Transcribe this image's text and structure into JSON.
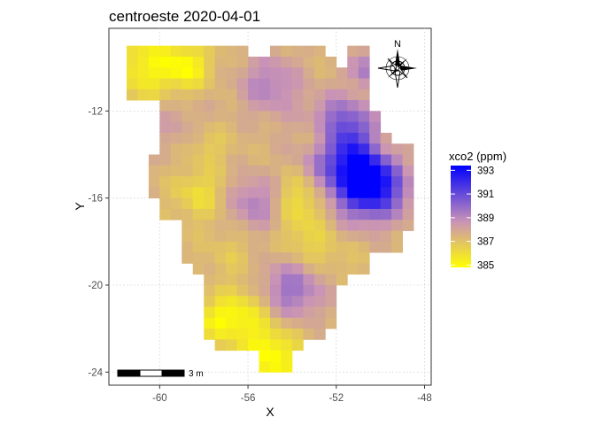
{
  "title": "centroeste 2020-04-01",
  "chart_data": {
    "type": "heatmap",
    "title": "centroeste 2020-04-01",
    "xlabel": "X",
    "ylabel": "Y",
    "x_ticks": [
      -60,
      -56,
      -52,
      -48
    ],
    "y_ticks": [
      -12,
      -16,
      -20,
      -24
    ],
    "x_tick_labels": [
      "-60",
      "-56",
      "-52",
      "-48"
    ],
    "y_tick_labels": [
      "-12",
      "-16",
      "-20",
      "-24"
    ],
    "xlim": [
      -62.3,
      -47.7
    ],
    "ylim": [
      -24.6,
      -8.2
    ],
    "grid": true,
    "grid_style": "dotted",
    "legend": {
      "title": "xco2 (ppm)",
      "placement": "right",
      "range": [
        384.8,
        393.4
      ],
      "breaks": [
        393,
        391,
        389,
        387,
        385
      ],
      "break_labels": [
        "393",
        "391",
        "389",
        "387",
        "385"
      ],
      "colors": [
        "#ffff00",
        "#c993b6",
        "#0000ff"
      ]
    },
    "cell_size_deg": 0.5,
    "region_rows": [
      {
        "y": -9.0,
        "x_ranges": [
          [
            -61.5,
            -56.0
          ],
          [
            -55.0,
            -52.5
          ],
          [
            -51.5,
            -50.5
          ]
        ]
      },
      {
        "y": -9.5,
        "x_ranges": [
          [
            -61.5,
            -52.0
          ],
          [
            -51.5,
            -50.5
          ]
        ]
      },
      {
        "y": -10.0,
        "x_ranges": [
          [
            -61.5,
            -50.5
          ]
        ]
      },
      {
        "y": -10.5,
        "x_ranges": [
          [
            -61.5,
            -50.5
          ]
        ]
      },
      {
        "y": -11.0,
        "x_ranges": [
          [
            -61.5,
            -50.5
          ]
        ]
      },
      {
        "y": -11.5,
        "x_ranges": [
          [
            -60.0,
            -50.5
          ]
        ]
      },
      {
        "y": -12.0,
        "x_ranges": [
          [
            -60.0,
            -50.0
          ]
        ]
      },
      {
        "y": -12.5,
        "x_ranges": [
          [
            -60.0,
            -50.0
          ]
        ]
      },
      {
        "y": -13.0,
        "x_ranges": [
          [
            -60.0,
            -49.5
          ]
        ]
      },
      {
        "y": -13.5,
        "x_ranges": [
          [
            -60.0,
            -48.5
          ]
        ]
      },
      {
        "y": -14.0,
        "x_ranges": [
          [
            -60.5,
            -48.5
          ]
        ]
      },
      {
        "y": -14.5,
        "x_ranges": [
          [
            -60.5,
            -48.5
          ]
        ]
      },
      {
        "y": -15.0,
        "x_ranges": [
          [
            -60.5,
            -48.5
          ]
        ]
      },
      {
        "y": -15.5,
        "x_ranges": [
          [
            -60.5,
            -48.5
          ]
        ]
      },
      {
        "y": -16.0,
        "x_ranges": [
          [
            -60.0,
            -48.5
          ]
        ]
      },
      {
        "y": -16.5,
        "x_ranges": [
          [
            -60.0,
            -48.5
          ]
        ]
      },
      {
        "y": -17.0,
        "x_ranges": [
          [
            -59.0,
            -48.5
          ]
        ]
      },
      {
        "y": -17.5,
        "x_ranges": [
          [
            -59.0,
            -49.0
          ]
        ]
      },
      {
        "y": -18.0,
        "x_ranges": [
          [
            -59.0,
            -49.0
          ]
        ]
      },
      {
        "y": -18.5,
        "x_ranges": [
          [
            -59.0,
            -50.5
          ]
        ]
      },
      {
        "y": -19.0,
        "x_ranges": [
          [
            -58.5,
            -50.5
          ]
        ]
      },
      {
        "y": -19.5,
        "x_ranges": [
          [
            -58.0,
            -51.5
          ]
        ]
      },
      {
        "y": -20.0,
        "x_ranges": [
          [
            -58.0,
            -52.0
          ]
        ]
      },
      {
        "y": -20.5,
        "x_ranges": [
          [
            -58.0,
            -52.0
          ]
        ]
      },
      {
        "y": -21.0,
        "x_ranges": [
          [
            -58.0,
            -52.0
          ]
        ]
      },
      {
        "y": -21.5,
        "x_ranges": [
          [
            -58.0,
            -52.0
          ]
        ]
      },
      {
        "y": -22.0,
        "x_ranges": [
          [
            -58.0,
            -52.5
          ]
        ]
      },
      {
        "y": -22.5,
        "x_ranges": [
          [
            -57.5,
            -53.5
          ]
        ]
      },
      {
        "y": -23.0,
        "x_ranges": [
          [
            -55.5,
            -54.0
          ]
        ]
      },
      {
        "y": -23.5,
        "x_ranges": [
          [
            -55.5,
            -54.0
          ]
        ]
      }
    ],
    "value_field": {
      "background_value": 387.4,
      "hotspots": [
        {
          "x": -50.3,
          "y": -15.2,
          "peak": 393.2,
          "radius": 1.1
        },
        {
          "x": -51.5,
          "y": -14.5,
          "peak": 391.0,
          "radius": 1.4
        },
        {
          "x": -51.8,
          "y": -12.6,
          "peak": 389.8,
          "radius": 0.9
        },
        {
          "x": -50.6,
          "y": -10.0,
          "peak": 389.5,
          "radius": 0.6
        },
        {
          "x": -55.0,
          "y": -10.8,
          "peak": 389.2,
          "radius": 1.0
        },
        {
          "x": -55.6,
          "y": -16.2,
          "peak": 389.4,
          "radius": 0.9
        },
        {
          "x": -54.0,
          "y": -20.2,
          "peak": 389.8,
          "radius": 1.0
        },
        {
          "x": -59.5,
          "y": -12.3,
          "peak": 388.3,
          "radius": 1.1
        },
        {
          "x": -60.5,
          "y": -10.0,
          "peak": 385.2,
          "radius": 1.2
        },
        {
          "x": -58.7,
          "y": -10.0,
          "peak": 385.5,
          "radius": 0.7
        },
        {
          "x": -53.5,
          "y": -16.0,
          "peak": 385.3,
          "radius": 1.0
        },
        {
          "x": -50.0,
          "y": -13.8,
          "peak": 385.6,
          "radius": 0.7
        },
        {
          "x": -49.2,
          "y": -14.8,
          "peak": 386.0,
          "radius": 0.8
        },
        {
          "x": -52.7,
          "y": -13.2,
          "peak": 385.6,
          "radius": 0.6
        },
        {
          "x": -56.3,
          "y": -21.5,
          "peak": 385.2,
          "radius": 0.9
        },
        {
          "x": -54.9,
          "y": -23.3,
          "peak": 384.8,
          "radius": 0.9
        },
        {
          "x": -57.6,
          "y": -21.6,
          "peak": 386.0,
          "radius": 0.6
        },
        {
          "x": -58.2,
          "y": -15.8,
          "peak": 386.0,
          "radius": 0.8
        },
        {
          "x": -57.8,
          "y": -13.6,
          "peak": 386.5,
          "radius": 0.6
        },
        {
          "x": -56.8,
          "y": -18.5,
          "peak": 386.8,
          "radius": 0.8
        },
        {
          "x": -53.3,
          "y": -18.3,
          "peak": 386.3,
          "radius": 0.8
        },
        {
          "x": -51.8,
          "y": -18.8,
          "peak": 387.0,
          "radius": 0.7
        }
      ]
    },
    "annotations": {
      "north_arrow_label": "N",
      "scale_bar_label": "3 m"
    }
  }
}
